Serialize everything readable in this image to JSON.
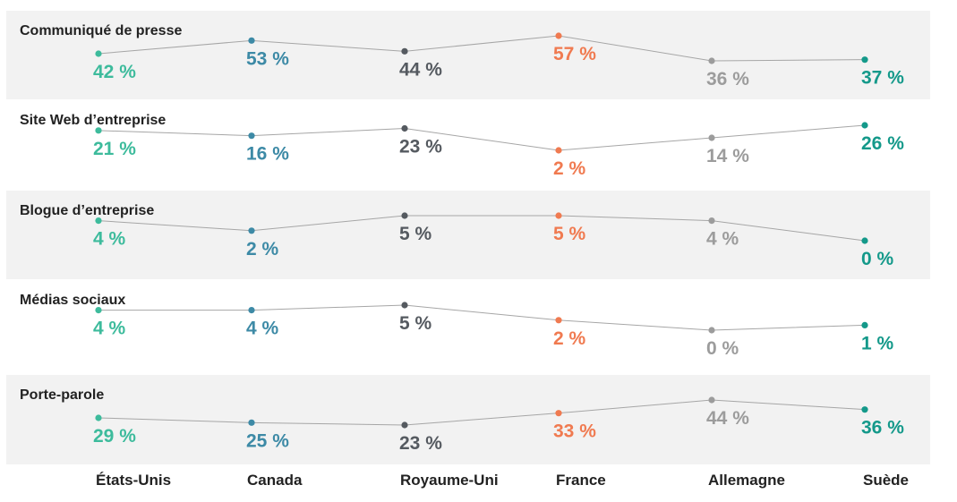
{
  "colors": {
    "band_fill": "#f2f2f2",
    "line": "#a6a6a6",
    "countries": [
      "#3dbb9c",
      "#3d8aa6",
      "#555a60",
      "#f07a50",
      "#9c9c9c",
      "#14998a"
    ]
  },
  "chart_data": [
    {
      "type": "line",
      "title": "Communiqué de presse",
      "categories": [
        "États-Unis",
        "Canada",
        "Royaume-Uni",
        "France",
        "Allemagne",
        "Suède"
      ],
      "values": [
        42,
        53,
        44,
        57,
        36,
        37
      ],
      "labels": [
        "42 %",
        "53 %",
        "44 %",
        "57 %",
        "36 %",
        "37 %"
      ],
      "shaded": true
    },
    {
      "type": "line",
      "title": "Site Web d’entreprise",
      "categories": [
        "États-Unis",
        "Canada",
        "Royaume-Uni",
        "France",
        "Allemagne",
        "Suède"
      ],
      "values": [
        21,
        16,
        23,
        2,
        14,
        26
      ],
      "labels": [
        "21 %",
        "16 %",
        "23 %",
        "2 %",
        "14 %",
        "26 %"
      ],
      "shaded": false
    },
    {
      "type": "line",
      "title": "Blogue d’entreprise",
      "categories": [
        "États-Unis",
        "Canada",
        "Royaume-Uni",
        "France",
        "Allemagne",
        "Suède"
      ],
      "values": [
        4,
        2,
        5,
        5,
        4,
        0
      ],
      "labels": [
        "4 %",
        "2 %",
        "5 %",
        "5 %",
        "4 %",
        "0 %"
      ],
      "shaded": true
    },
    {
      "type": "line",
      "title": "Médias sociaux",
      "categories": [
        "États-Unis",
        "Canada",
        "Royaume-Uni",
        "France",
        "Allemagne",
        "Suède"
      ],
      "values": [
        4,
        4,
        5,
        2,
        0,
        1
      ],
      "labels": [
        "4 %",
        "4 %",
        "5 %",
        "2 %",
        "0 %",
        "1 %"
      ],
      "shaded": false
    },
    {
      "type": "line",
      "title": "Porte-parole",
      "categories": [
        "États-Unis",
        "Canada",
        "Royaume-Uni",
        "France",
        "Allemagne",
        "Suède"
      ],
      "values": [
        29,
        25,
        23,
        33,
        44,
        36
      ],
      "labels": [
        "29 %",
        "25 %",
        "23 %",
        "33 %",
        "44 %",
        "36 %"
      ],
      "shaded": true
    }
  ],
  "x_axis": {
    "labels": [
      "États-Unis",
      "Canada",
      "Royaume-Uni",
      "France",
      "Allemagne",
      "Suède"
    ]
  }
}
